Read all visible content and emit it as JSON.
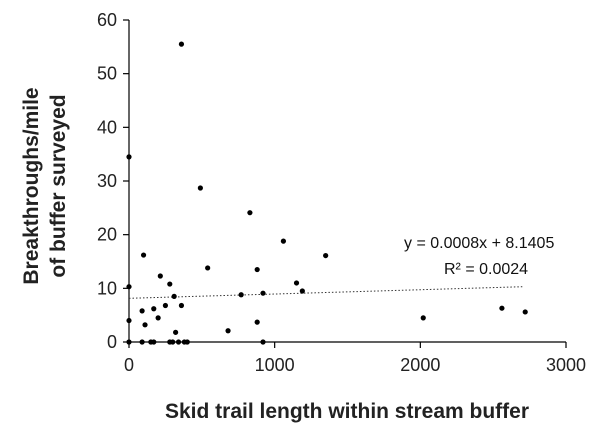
{
  "chart_data": {
    "type": "scatter",
    "title": "",
    "xlabel": "Skid trail length within stream buffer",
    "ylabel_lines": [
      "Breakthroughs/mile",
      "of buffer surveyed"
    ],
    "xlim": [
      0,
      3000
    ],
    "ylim": [
      0,
      60
    ],
    "x_ticks": [
      0,
      1000,
      2000,
      3000
    ],
    "y_ticks": [
      0,
      10,
      20,
      30,
      40,
      50,
      60
    ],
    "grid": false,
    "legend": "none",
    "point_color": "#000000",
    "trendline": {
      "type": "linear",
      "slope": 0.0008,
      "intercept": 8.1405,
      "x_range": [
        0,
        2700
      ],
      "style": "dotted",
      "equation_label": "y = 0.0008x + 8.1405",
      "r2_label": "R² = 0.0024"
    },
    "points": [
      {
        "x": 0,
        "y": 34.5
      },
      {
        "x": 0,
        "y": 10.3
      },
      {
        "x": 0,
        "y": 4
      },
      {
        "x": 0,
        "y": 0
      },
      {
        "x": 100,
        "y": 16.2
      },
      {
        "x": 90,
        "y": 5.8
      },
      {
        "x": 110,
        "y": 3.2
      },
      {
        "x": 90,
        "y": 0
      },
      {
        "x": 150,
        "y": 0
      },
      {
        "x": 170,
        "y": 0
      },
      {
        "x": 170,
        "y": 6.2
      },
      {
        "x": 200,
        "y": 4.5
      },
      {
        "x": 215,
        "y": 12.3
      },
      {
        "x": 250,
        "y": 6.8
      },
      {
        "x": 280,
        "y": 10.8
      },
      {
        "x": 280,
        "y": 0
      },
      {
        "x": 300,
        "y": 0
      },
      {
        "x": 310,
        "y": 8.5
      },
      {
        "x": 320,
        "y": 1.8
      },
      {
        "x": 340,
        "y": 0
      },
      {
        "x": 360,
        "y": 55.5
      },
      {
        "x": 360,
        "y": 6.8
      },
      {
        "x": 380,
        "y": 0
      },
      {
        "x": 400,
        "y": 0
      },
      {
        "x": 490,
        "y": 28.7
      },
      {
        "x": 540,
        "y": 13.8
      },
      {
        "x": 680,
        "y": 2.1
      },
      {
        "x": 770,
        "y": 8.8
      },
      {
        "x": 830,
        "y": 24.1
      },
      {
        "x": 880,
        "y": 13.5
      },
      {
        "x": 880,
        "y": 3.7
      },
      {
        "x": 920,
        "y": 9.1
      },
      {
        "x": 920,
        "y": 0
      },
      {
        "x": 1060,
        "y": 18.8
      },
      {
        "x": 1150,
        "y": 11
      },
      {
        "x": 1190,
        "y": 9.5
      },
      {
        "x": 1350,
        "y": 16.1
      },
      {
        "x": 2020,
        "y": 4.5
      },
      {
        "x": 2560,
        "y": 6.3
      },
      {
        "x": 2720,
        "y": 5.6
      }
    ]
  }
}
